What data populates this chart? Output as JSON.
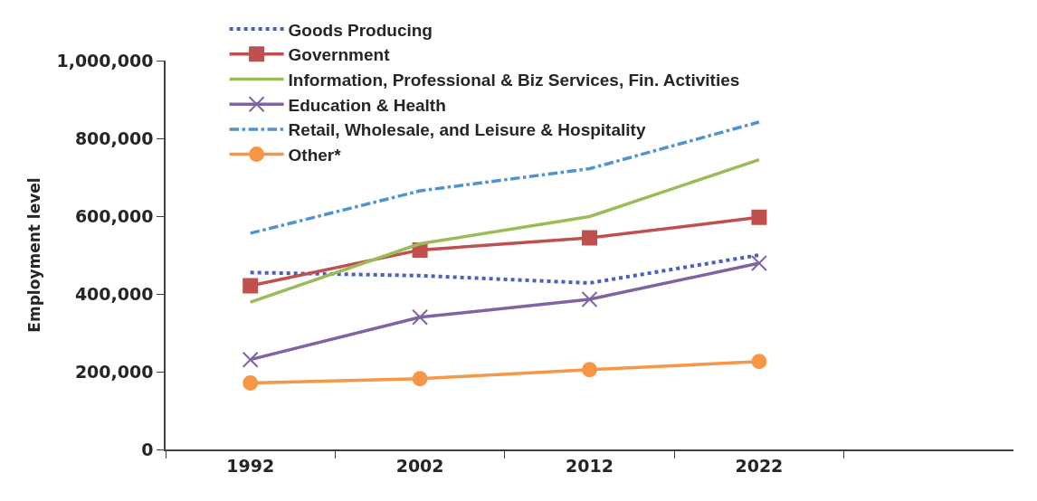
{
  "chart_data": {
    "type": "line",
    "ylabel": "Employment level",
    "categories": [
      "1992",
      "2002",
      "2012",
      "2022"
    ],
    "ylim": [
      0,
      1000000
    ],
    "yticks": [
      {
        "value": 0,
        "label": "0"
      },
      {
        "value": 200000,
        "label": "200,000"
      },
      {
        "value": 400000,
        "label": "400,000"
      },
      {
        "value": 600000,
        "label": "600,000"
      },
      {
        "value": 800000,
        "label": "800,000"
      },
      {
        "value": 1000000,
        "label": "1,000,000"
      }
    ],
    "grid": false,
    "legend": "top left",
    "series": [
      {
        "name": "Goods Producing",
        "color": "#4a5fc1",
        "line_style": "dotted",
        "marker": "none",
        "values": [
          455000,
          447000,
          428000,
          500000
        ]
      },
      {
        "name": "Government",
        "color": "#c0504d",
        "line_style": "solid",
        "marker": "square",
        "values": [
          421000,
          513000,
          544000,
          597000
        ]
      },
      {
        "name": "Information, Professional & Biz Services, Fin. Activities",
        "color": "#9bbb59",
        "line_style": "solid",
        "marker": "none",
        "values": [
          379000,
          529000,
          599000,
          745000
        ]
      },
      {
        "name": "Education & Health",
        "color": "#8064a2",
        "line_style": "solid",
        "marker": "cross",
        "values": [
          231000,
          340000,
          386000,
          479000
        ]
      },
      {
        "name": "Retail, Wholesale, and Leisure & Hospitality",
        "color": "#4f93d0",
        "line_style": "dashdot",
        "marker": "none",
        "values": [
          556000,
          665000,
          722000,
          842000
        ]
      },
      {
        "name": "Other*",
        "color": "#f79646",
        "line_style": "solid",
        "marker": "circle",
        "values": [
          171000,
          182000,
          205000,
          226000
        ]
      }
    ]
  }
}
